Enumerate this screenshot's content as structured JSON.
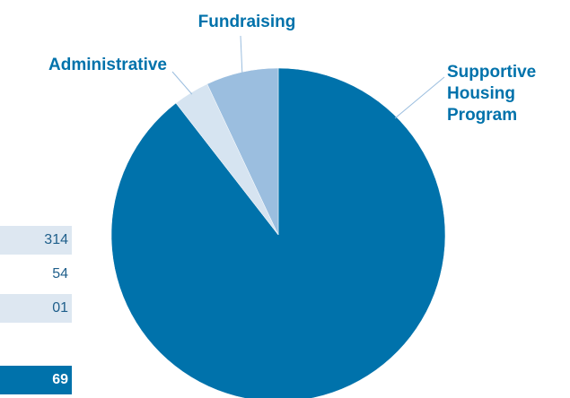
{
  "chart_data": {
    "type": "pie",
    "title": "",
    "slices": [
      {
        "label": "Supportive Housing Program",
        "label_lines": [
          "Supportive",
          "Housing",
          "Program"
        ],
        "value": 89.5,
        "color": "#0072ab"
      },
      {
        "label": "Administrative",
        "label_lines": [
          "Administrative"
        ],
        "value": 3.5,
        "color": "#d6e4f1"
      },
      {
        "label": "Fundraising",
        "label_lines": [
          "Fundraising"
        ],
        "value": 7.0,
        "color": "#9bbedf"
      }
    ]
  },
  "table": {
    "rows": [
      {
        "text": "314",
        "style": "alt"
      },
      {
        "text": "54",
        "style": "plain"
      },
      {
        "text": "01",
        "style": "alt"
      },
      {
        "text": "69",
        "style": "total"
      }
    ]
  }
}
